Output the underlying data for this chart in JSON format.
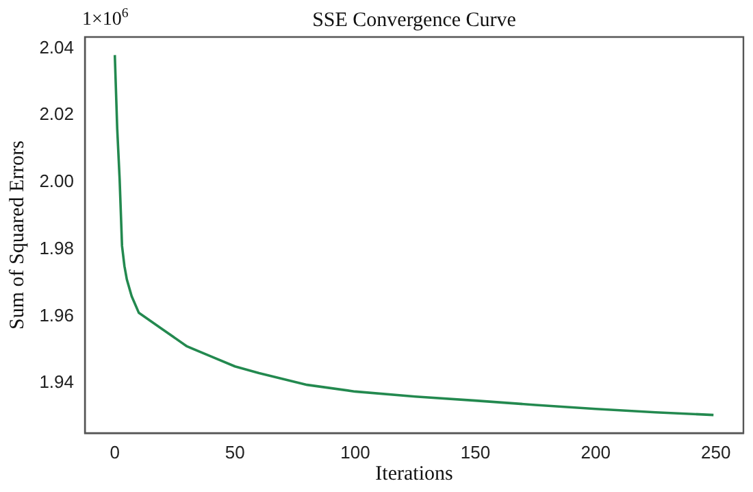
{
  "chart_data": {
    "type": "line",
    "title": "SSE Convergence Curve",
    "xlabel": "Iterations",
    "ylabel": "Sum of Squared Errors",
    "annotations": [
      "1×10$^{6}$"
    ],
    "x": [
      0,
      1,
      2,
      3,
      4,
      5,
      7,
      10,
      15,
      20,
      30,
      40,
      50,
      60,
      80,
      100,
      125,
      150,
      175,
      200,
      225,
      249
    ],
    "series": [
      {
        "color": "#23894f",
        "values": [
          2.038,
          2.016,
          2.001,
          1.981,
          1.975,
          1.971,
          1.966,
          1.961,
          1.9585,
          1.956,
          1.951,
          1.948,
          1.945,
          1.943,
          1.9395,
          1.9375,
          1.936,
          1.9348,
          1.9335,
          1.9323,
          1.9313,
          1.9305
        ]
      }
    ],
    "xlim": [
      -12.45,
      261.45
    ],
    "xticks": [
      0,
      50,
      100,
      150,
      200,
      250
    ],
    "ylim": [
      1.9251,
      2.0434
    ],
    "yticks": [
      {
        "value": 1.94,
        "label": "1.94"
      },
      {
        "value": 1.96,
        "label": "1.96"
      },
      {
        "value": 1.98,
        "label": "1.98"
      },
      {
        "value": 2.0,
        "label": "2.00"
      },
      {
        "value": 2.02,
        "label": "2.02"
      },
      {
        "value": 2.04,
        "label": "2.04"
      }
    ],
    "grid": false,
    "legend": false,
    "marker": "none",
    "line_style": "solid"
  }
}
